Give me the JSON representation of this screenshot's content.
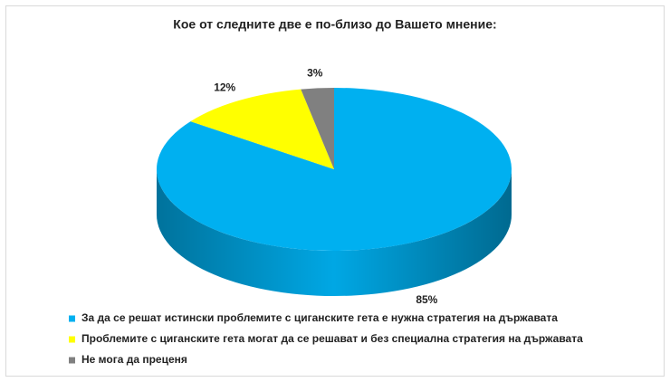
{
  "chart_data": {
    "type": "pie",
    "title": "Кое от следните две е по-близо до Вашето мнение:",
    "categories": [
      "За да се решат истински проблемите с циганските гета е нужна стратегия на държавата",
      "Проблемите с циганските гета могат да се решават и без специална стратегия на държавата",
      "Не мога да преценя"
    ],
    "values": [
      85,
      12,
      3
    ],
    "value_labels": [
      "85%",
      "12%",
      "3%"
    ],
    "colors": [
      "#00b0f0",
      "#ffff00",
      "#808080"
    ]
  }
}
